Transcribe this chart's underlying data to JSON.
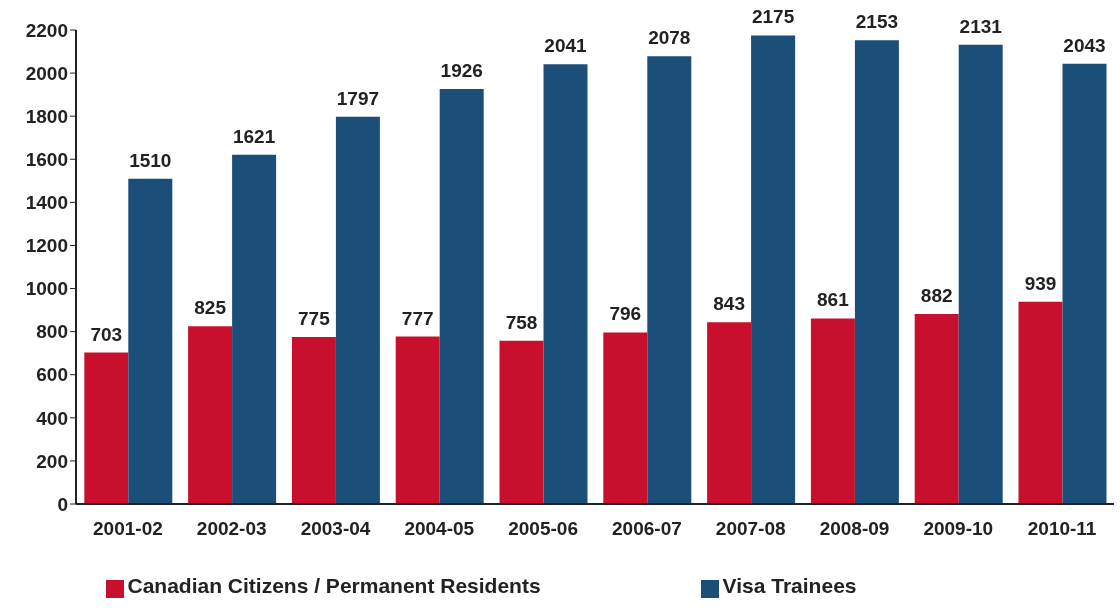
{
  "chart_data": {
    "type": "bar",
    "categories": [
      "2001-02",
      "2002-03",
      "2003-04",
      "2004-05",
      "2005-06",
      "2006-07",
      "2007-08",
      "2008-09",
      "2009-10",
      "2010-11"
    ],
    "series": [
      {
        "name": "Canadian Citizens / Permanent Residents",
        "color": "#c8102e",
        "values": [
          703,
          825,
          775,
          777,
          758,
          796,
          843,
          861,
          882,
          939
        ]
      },
      {
        "name": "Visa Trainees",
        "color": "#1b4f79",
        "values": [
          1510,
          1621,
          1797,
          1926,
          2041,
          2078,
          2175,
          2153,
          2131,
          2043
        ]
      }
    ],
    "ylim": [
      0,
      2200
    ],
    "yticks": [
      0,
      200,
      400,
      600,
      800,
      1000,
      1200,
      1400,
      1600,
      1800,
      2000,
      2200
    ],
    "grid": false,
    "legend": "bottom",
    "data_labels": true
  }
}
